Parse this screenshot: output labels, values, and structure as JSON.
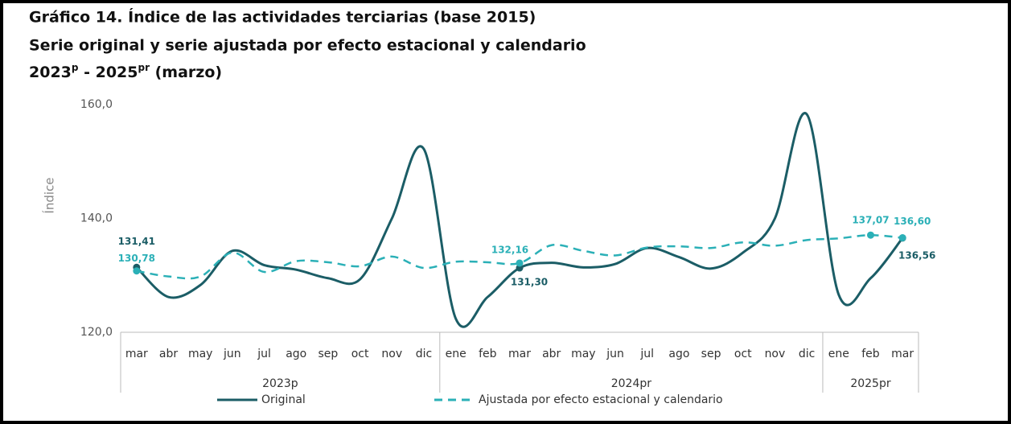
{
  "chart_data": {
    "type": "line",
    "title": "Gráfico 14. Índice de las actividades terciarias (base 2015)",
    "subtitle": "Serie original y serie ajustada por efecto estacional y calendario",
    "date_range": [
      "2023",
      "p",
      " - 2025",
      "pr",
      " (marzo)"
    ],
    "y_label": "Índice",
    "categories": [
      "mar",
      "abr",
      "may",
      "jun",
      "jul",
      "ago",
      "sep",
      "oct",
      "nov",
      "dic",
      "ene",
      "feb",
      "mar",
      "abr",
      "may",
      "jun",
      "jul",
      "ago",
      "sep",
      "oct",
      "nov",
      "dic",
      "ene",
      "feb",
      "mar"
    ],
    "groups": [
      {
        "label": "2023p",
        "count": 10
      },
      {
        "label": "2024pr",
        "count": 12
      },
      {
        "label": "2025pr",
        "count": 3
      }
    ],
    "ylim": [
      120,
      160
    ],
    "yticks": [
      {
        "value": 120,
        "label": "120,0"
      },
      {
        "value": 140,
        "label": "140,0"
      },
      {
        "value": 160,
        "label": "160,0"
      }
    ],
    "legend": "bottom",
    "series": [
      {
        "name": "Original",
        "color": "#1b5d66",
        "dash": false,
        "values": [
          131.41,
          126.2,
          128.3,
          134.3,
          131.8,
          131.0,
          129.5,
          129.3,
          140.0,
          152.2,
          122.4,
          126.2,
          131.3,
          132.2,
          131.4,
          132.0,
          134.8,
          133.2,
          131.2,
          134.0,
          140.0,
          158.3,
          126.6,
          129.5,
          136.56
        ],
        "value_labels": [
          "131,41",
          null,
          null,
          null,
          null,
          null,
          null,
          null,
          null,
          null,
          null,
          null,
          "131,30",
          null,
          null,
          null,
          null,
          null,
          null,
          null,
          null,
          null,
          null,
          null,
          "136,56"
        ]
      },
      {
        "name": "Ajustada por efecto estacional y calendario",
        "color": "#2bb0b7",
        "dash": true,
        "values": [
          130.78,
          129.8,
          129.8,
          134.0,
          130.6,
          132.5,
          132.3,
          131.6,
          133.3,
          131.3,
          132.4,
          132.3,
          132.16,
          135.3,
          134.3,
          133.5,
          134.9,
          135.1,
          134.8,
          135.8,
          135.2,
          136.2,
          136.5,
          137.07,
          136.6
        ],
        "value_labels": [
          "130,78",
          null,
          null,
          null,
          null,
          null,
          null,
          null,
          null,
          null,
          null,
          null,
          "132,16",
          null,
          null,
          null,
          null,
          null,
          null,
          null,
          null,
          null,
          null,
          "137,07",
          "136,60"
        ]
      }
    ]
  }
}
